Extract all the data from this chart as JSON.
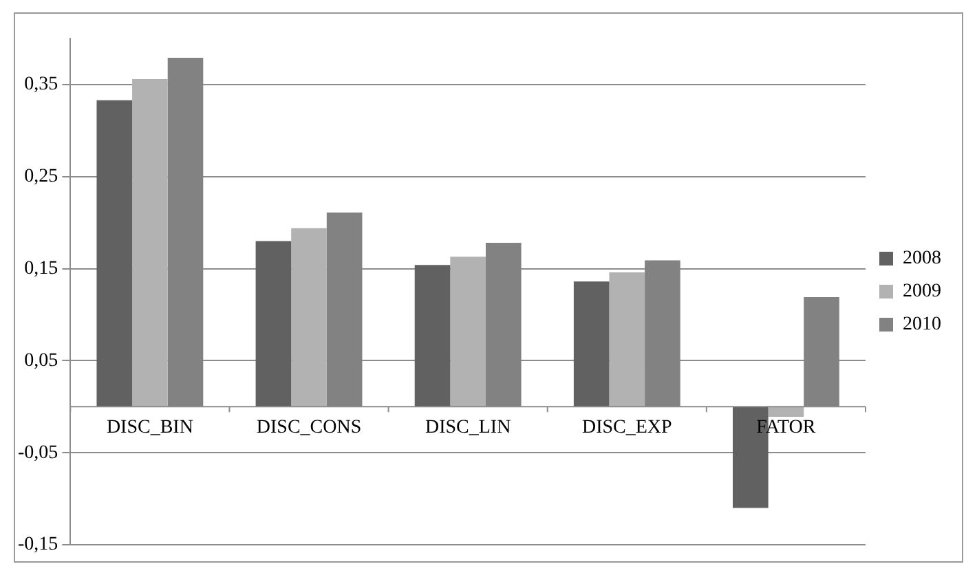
{
  "chart_data": {
    "type": "bar",
    "categories": [
      "DISC_BIN",
      "DISC_CONS",
      "DISC_LIN",
      "DISC_EXP",
      "FATOR"
    ],
    "series": [
      {
        "name": "2008",
        "color": "#616161",
        "values": [
          0.333,
          0.18,
          0.154,
          0.136,
          -0.11
        ]
      },
      {
        "name": "2009",
        "color": "#b2b2b2",
        "values": [
          0.356,
          0.194,
          0.163,
          0.146,
          -0.011
        ]
      },
      {
        "name": "2010",
        "color": "#828282",
        "values": [
          0.379,
          0.211,
          0.178,
          0.159,
          0.119
        ]
      }
    ],
    "ylim": [
      -0.15,
      0.4
    ],
    "yticks": [
      {
        "value": -0.15,
        "label": "-0,15"
      },
      {
        "value": -0.05,
        "label": "-0,05"
      },
      {
        "value": 0.05,
        "label": "0,05"
      },
      {
        "value": 0.15,
        "label": "0,15"
      },
      {
        "value": 0.25,
        "label": "0,25"
      },
      {
        "value": 0.35,
        "label": "0,35"
      }
    ],
    "grid": "y",
    "legend": "right"
  }
}
